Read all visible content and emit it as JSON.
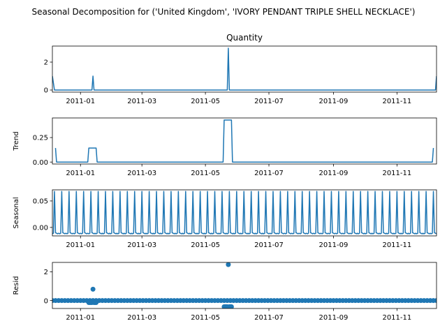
{
  "figure": {
    "suptitle": "Seasonal Decomposition for ('United Kingdom', 'IVORY PENDANT TRIPLE SHELL NECKLACE')"
  },
  "colors": {
    "line": "#1f77b4",
    "axes": "#000000"
  },
  "chart_data": [
    {
      "type": "line",
      "title": "Quantity",
      "ylabel": "",
      "xlim": [
        "2010-12-05",
        "2011-12-09"
      ],
      "ylim": [
        -0.15,
        3.15
      ],
      "yticks": [
        0,
        2
      ],
      "xticks": [
        "2011-01",
        "2011-03",
        "2011-05",
        "2011-07",
        "2011-09",
        "2011-11"
      ],
      "points": [
        {
          "x": "2010-12-05",
          "y": 1
        },
        {
          "x": "2010-12-07",
          "y": 0
        },
        {
          "x": "2011-01-12",
          "y": 0
        },
        {
          "x": "2011-01-13",
          "y": 1
        },
        {
          "x": "2011-01-14",
          "y": 0
        },
        {
          "x": "2011-05-22",
          "y": 0
        },
        {
          "x": "2011-05-23",
          "y": 3
        },
        {
          "x": "2011-05-24",
          "y": 0
        },
        {
          "x": "2011-12-08",
          "y": 0
        },
        {
          "x": "2011-12-09",
          "y": 1
        }
      ]
    },
    {
      "type": "line",
      "title": "",
      "ylabel": "Trend",
      "xlim": [
        "2010-12-05",
        "2011-12-09"
      ],
      "ylim": [
        -0.02,
        0.45
      ],
      "yticks": [
        "0.00",
        "0.25"
      ],
      "xticks": [
        "2011-01",
        "2011-03",
        "2011-05",
        "2011-07",
        "2011-09",
        "2011-11"
      ],
      "points": [
        {
          "x": "2010-12-08",
          "y": 0.143
        },
        {
          "x": "2010-12-09",
          "y": 0
        },
        {
          "x": "2011-01-08",
          "y": 0
        },
        {
          "x": "2011-01-09",
          "y": 0.143
        },
        {
          "x": "2011-01-16",
          "y": 0.143
        },
        {
          "x": "2011-01-17",
          "y": 0
        },
        {
          "x": "2011-05-18",
          "y": 0
        },
        {
          "x": "2011-05-19",
          "y": 0.429
        },
        {
          "x": "2011-05-26",
          "y": 0.429
        },
        {
          "x": "2011-05-27",
          "y": 0
        },
        {
          "x": "2011-12-05",
          "y": 0
        },
        {
          "x": "2011-12-06",
          "y": 0.143
        }
      ]
    },
    {
      "type": "line",
      "title": "",
      "ylabel": "Seasonal",
      "xlim": [
        "2010-12-05",
        "2011-12-09"
      ],
      "ylim": [
        -0.016,
        0.071
      ],
      "yticks": [
        "0.00",
        "0.05"
      ],
      "xticks": [
        "2011-01",
        "2011-03",
        "2011-05",
        "2011-07",
        "2011-09",
        "2011-11"
      ],
      "series_start": "2010-12-05",
      "series_end": "2011-12-09",
      "pattern": [
        -0.012,
        -0.011,
        0.068,
        -0.01,
        -0.011,
        -0.012,
        -0.011
      ]
    },
    {
      "type": "scatter",
      "title": "",
      "ylabel": "Resid",
      "xlim": [
        "2010-12-05",
        "2011-12-09"
      ],
      "ylim": [
        -0.55,
        2.65
      ],
      "yticks": [
        0,
        2
      ],
      "xticks": [
        "2011-01",
        "2011-03",
        "2011-05",
        "2011-07",
        "2011-09",
        "2011-11"
      ],
      "points": [
        {
          "x": "2011-01-13",
          "y": 0.79
        },
        {
          "x": "2011-05-23",
          "y": 2.5
        },
        {
          "x": "2011-05-19",
          "y": -0.43
        },
        {
          "x": "2011-05-20",
          "y": -0.43
        },
        {
          "x": "2011-05-21",
          "y": -0.43
        },
        {
          "x": "2011-05-22",
          "y": -0.43
        },
        {
          "x": "2011-05-24",
          "y": -0.43
        },
        {
          "x": "2011-05-25",
          "y": -0.43
        },
        {
          "x": "2011-05-26",
          "y": -0.43
        },
        {
          "x": "2011-01-09",
          "y": -0.14
        },
        {
          "x": "2011-01-10",
          "y": -0.14
        },
        {
          "x": "2011-01-11",
          "y": -0.14
        },
        {
          "x": "2011-01-12",
          "y": -0.14
        },
        {
          "x": "2011-01-14",
          "y": -0.14
        },
        {
          "x": "2011-01-15",
          "y": -0.14
        },
        {
          "x": "2011-01-16",
          "y": -0.14
        }
      ],
      "baseline": {
        "start": "2010-12-05",
        "end": "2011-12-09",
        "y": 0,
        "every_days": 3
      }
    }
  ]
}
